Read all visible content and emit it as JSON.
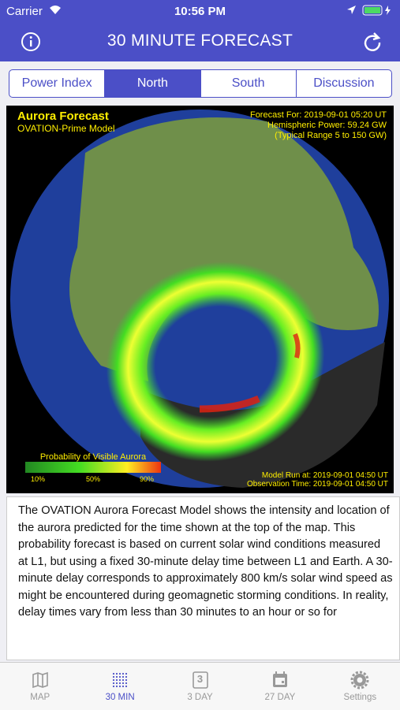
{
  "status_bar": {
    "carrier": "Carrier",
    "time": "10:56 PM"
  },
  "nav": {
    "title": "30 MINUTE FORECAST"
  },
  "tabs": {
    "items": [
      "Power Index",
      "North",
      "South",
      "Discussion"
    ],
    "selected": "North"
  },
  "map": {
    "title": "Aurora Forecast",
    "subtitle": "OVATION-Prime Model",
    "forecast_for": "Forecast For: 2019-09-01 05:20 UT",
    "hemispheric_power": "Hemispheric Power: 59.24 GW",
    "typical_range": "(Typical Range 5 to 150 GW)",
    "legend_title": "Probability of Visible Aurora",
    "legend_ticks": [
      "10%",
      "50%",
      "90%"
    ],
    "model_run": "Model Run at: 2019-09-01 04:50 UT",
    "observation_time": "Observation Time: 2019-09-01 04:50 UT"
  },
  "description": "The OVATION Aurora Forecast Model shows the intensity and location of the aurora predicted for the time shown at the top of the map. This probability forecast is based on current solar wind conditions measured at L1, but using a fixed 30-minute delay time between L1 and Earth. A 30-minute delay corresponds to approximately 800 km/s solar wind speed as might be encountered during geomagnetic storming conditions. In reality, delay times vary from less than 30 minutes to an hour or so for",
  "tab_bar": {
    "items": [
      {
        "label": "MAP"
      },
      {
        "label": "30 MIN",
        "icon_text": null
      },
      {
        "label": "3 DAY",
        "icon_text": "3"
      },
      {
        "label": "27 DAY"
      },
      {
        "label": "Settings"
      }
    ],
    "selected": "30 MIN"
  }
}
